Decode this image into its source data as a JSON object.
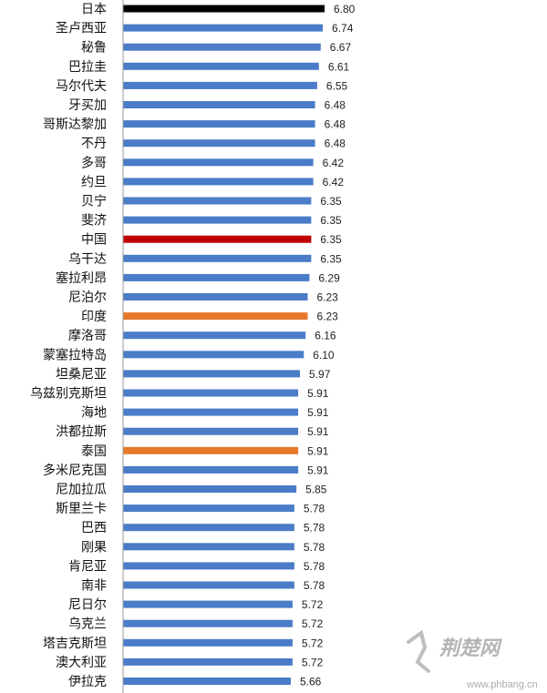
{
  "chart_data": {
    "type": "bar",
    "orientation": "horizontal",
    "categories": [
      "日本",
      "圣卢西亚",
      "秘鲁",
      "巴拉圭",
      "马尔代夫",
      "牙买加",
      "哥斯达黎加",
      "不丹",
      "多哥",
      "约旦",
      "贝宁",
      "斐济",
      "中国",
      "乌干达",
      "塞拉利昂",
      "尼泊尔",
      "印度",
      "摩洛哥",
      "蒙塞拉特岛",
      "坦桑尼亚",
      "乌兹别克斯坦",
      "海地",
      "洪都拉斯",
      "泰国",
      "多米尼克国",
      "尼加拉瓜",
      "斯里兰卡",
      "巴西",
      "刚果",
      "肯尼亚",
      "南非",
      "尼日尔",
      "乌克兰",
      "塔吉克斯坦",
      "澳大利亚",
      "伊拉克"
    ],
    "values": [
      6.8,
      6.74,
      6.67,
      6.61,
      6.55,
      6.48,
      6.48,
      6.48,
      6.42,
      6.42,
      6.35,
      6.35,
      6.35,
      6.35,
      6.29,
      6.23,
      6.23,
      6.16,
      6.1,
      5.97,
      5.91,
      5.91,
      5.91,
      5.91,
      5.91,
      5.85,
      5.78,
      5.78,
      5.78,
      5.78,
      5.78,
      5.72,
      5.72,
      5.72,
      5.72,
      5.66
    ],
    "value_labels": [
      "6.80",
      "6.74",
      "6.67",
      "6.61",
      "6.55",
      "6.48",
      "6.48",
      "6.48",
      "6.42",
      "6.42",
      "6.35",
      "6.35",
      "6.35",
      "6.35",
      "6.29",
      "6.23",
      "6.23",
      "6.16",
      "6.10",
      "5.97",
      "5.91",
      "5.91",
      "5.91",
      "5.91",
      "5.91",
      "5.85",
      "5.78",
      "5.78",
      "5.78",
      "5.78",
      "5.78",
      "5.72",
      "5.72",
      "5.72",
      "5.72",
      "5.66"
    ],
    "bar_colors": {
      "default": "#4a7cc7",
      "日本": "#000000",
      "中国": "#c00000",
      "印度": "#e6782a",
      "泰国": "#e6782a"
    },
    "axis_min": 0,
    "axis_max": 6.8,
    "grid": false,
    "legend": "none"
  },
  "watermark": {
    "site": "荆楚网",
    "url": "www.phbang.cn"
  }
}
